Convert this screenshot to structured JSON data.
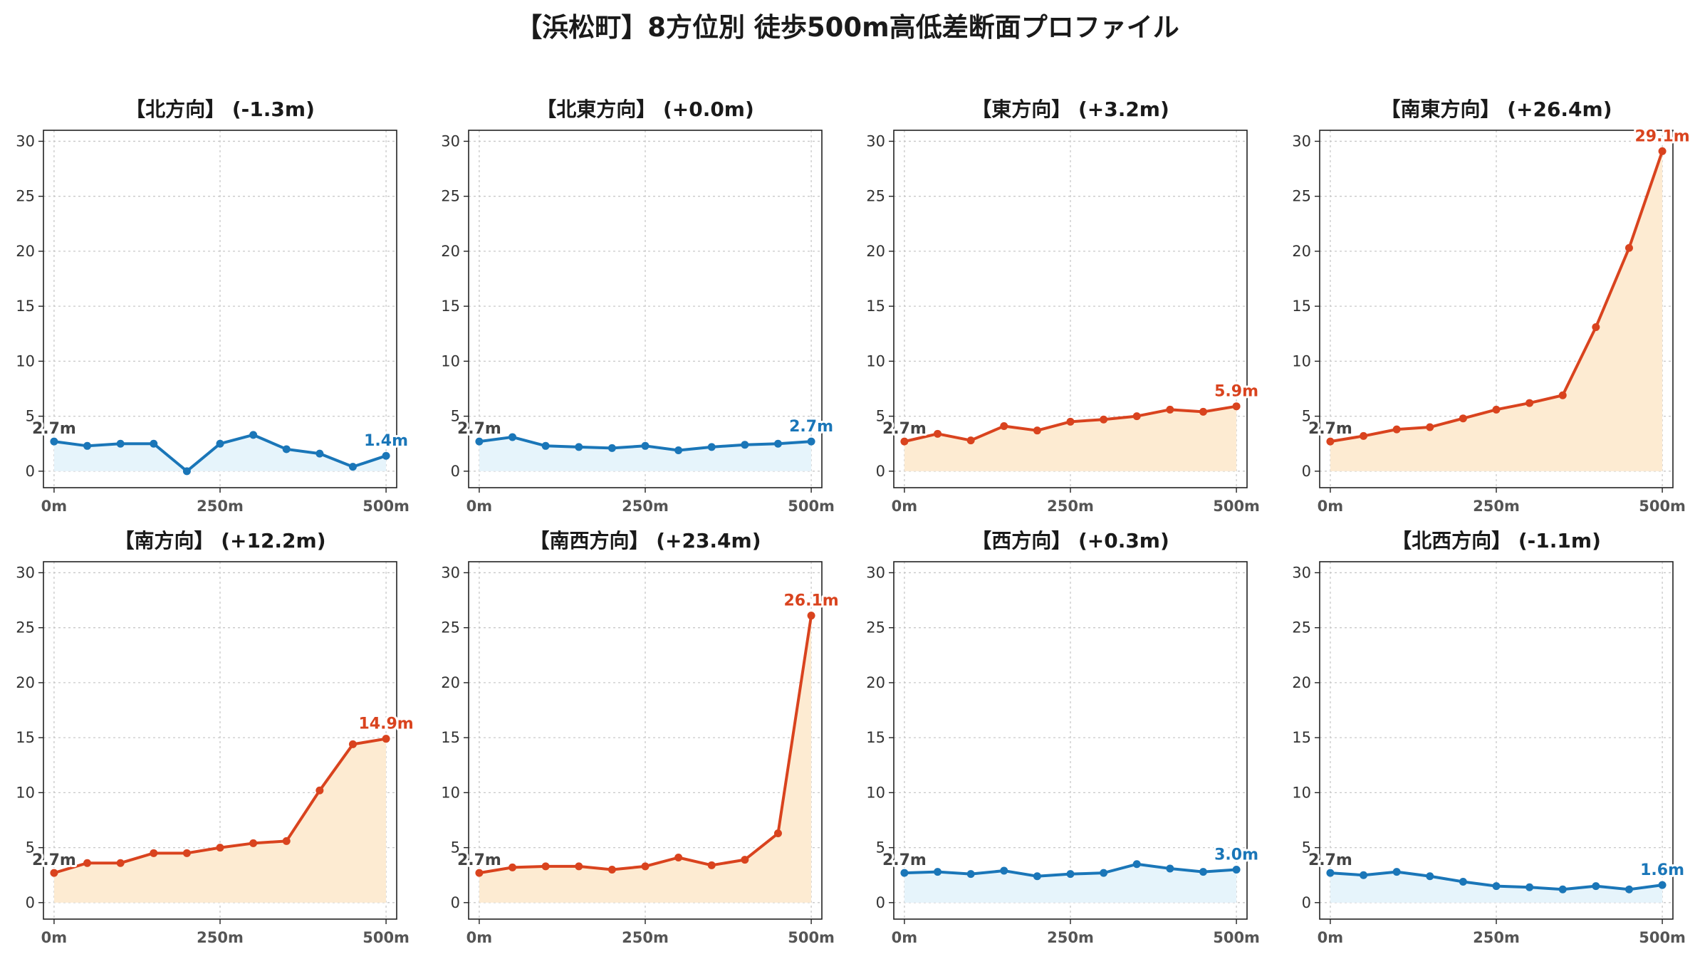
{
  "page_title": "【浜松町】8方位別 徒歩500m高低差断面プロファイル",
  "colors": {
    "uphill": "#d9431e",
    "uphill_fill": "#fdebd2",
    "flat": "#1a76b8",
    "flat_fill": "#e6f4fb"
  },
  "chart_data": [
    {
      "type": "area",
      "title": "【北方向】 (-1.3m)",
      "trend": "flat",
      "x": [
        0,
        50,
        100,
        150,
        200,
        250,
        300,
        350,
        400,
        450,
        500
      ],
      "x_tick_labels": [
        "0m",
        "250m",
        "500m"
      ],
      "x_ticks": [
        0,
        250,
        500
      ],
      "values": [
        2.7,
        2.3,
        2.5,
        2.5,
        0.0,
        2.5,
        3.3,
        2.0,
        1.6,
        0.4,
        1.4
      ],
      "start_label": "2.7m",
      "end_label": "1.4m",
      "ylim": [
        -1.5,
        31
      ],
      "y_ticks": [
        0,
        5,
        10,
        15,
        20,
        25,
        30
      ],
      "grid": true,
      "xlabel": "",
      "ylabel": ""
    },
    {
      "type": "area",
      "title": "【北東方向】 (+0.0m)",
      "trend": "flat",
      "x": [
        0,
        50,
        100,
        150,
        200,
        250,
        300,
        350,
        400,
        450,
        500
      ],
      "x_tick_labels": [
        "0m",
        "250m",
        "500m"
      ],
      "x_ticks": [
        0,
        250,
        500
      ],
      "values": [
        2.7,
        3.1,
        2.3,
        2.2,
        2.1,
        2.3,
        1.9,
        2.2,
        2.4,
        2.5,
        2.7
      ],
      "start_label": "2.7m",
      "end_label": "2.7m",
      "ylim": [
        -1.5,
        31
      ],
      "y_ticks": [
        0,
        5,
        10,
        15,
        20,
        25,
        30
      ],
      "grid": true,
      "xlabel": "",
      "ylabel": ""
    },
    {
      "type": "area",
      "title": "【東方向】 (+3.2m)",
      "trend": "uphill",
      "x": [
        0,
        50,
        100,
        150,
        200,
        250,
        300,
        350,
        400,
        450,
        500
      ],
      "x_tick_labels": [
        "0m",
        "250m",
        "500m"
      ],
      "x_ticks": [
        0,
        250,
        500
      ],
      "values": [
        2.7,
        3.4,
        2.8,
        4.1,
        3.7,
        4.5,
        4.7,
        5.0,
        5.6,
        5.4,
        5.9
      ],
      "start_label": "2.7m",
      "end_label": "5.9m",
      "ylim": [
        -1.5,
        31
      ],
      "y_ticks": [
        0,
        5,
        10,
        15,
        20,
        25,
        30
      ],
      "grid": true,
      "xlabel": "",
      "ylabel": ""
    },
    {
      "type": "area",
      "title": "【南東方向】 (+26.4m)",
      "trend": "uphill",
      "x": [
        0,
        50,
        100,
        150,
        200,
        250,
        300,
        350,
        400,
        450,
        500
      ],
      "x_tick_labels": [
        "0m",
        "250m",
        "500m"
      ],
      "x_ticks": [
        0,
        250,
        500
      ],
      "values": [
        2.7,
        3.2,
        3.8,
        4.0,
        4.8,
        5.6,
        6.2,
        6.9,
        13.1,
        20.3,
        29.1
      ],
      "start_label": "2.7m",
      "end_label": "29.1m",
      "ylim": [
        -1.5,
        31
      ],
      "y_ticks": [
        0,
        5,
        10,
        15,
        20,
        25,
        30
      ],
      "grid": true,
      "xlabel": "",
      "ylabel": ""
    },
    {
      "type": "area",
      "title": "【南方向】 (+12.2m)",
      "trend": "uphill",
      "x": [
        0,
        50,
        100,
        150,
        200,
        250,
        300,
        350,
        400,
        450,
        500
      ],
      "x_tick_labels": [
        "0m",
        "250m",
        "500m"
      ],
      "x_ticks": [
        0,
        250,
        500
      ],
      "values": [
        2.7,
        3.6,
        3.6,
        4.5,
        4.5,
        5.0,
        5.4,
        5.6,
        10.2,
        14.4,
        14.9
      ],
      "start_label": "2.7m",
      "end_label": "14.9m",
      "ylim": [
        -1.5,
        31
      ],
      "y_ticks": [
        0,
        5,
        10,
        15,
        20,
        25,
        30
      ],
      "grid": true,
      "xlabel": "",
      "ylabel": ""
    },
    {
      "type": "area",
      "title": "【南西方向】 (+23.4m)",
      "trend": "uphill",
      "x": [
        0,
        50,
        100,
        150,
        200,
        250,
        300,
        350,
        400,
        450,
        500
      ],
      "x_tick_labels": [
        "0m",
        "250m",
        "500m"
      ],
      "x_ticks": [
        0,
        250,
        500
      ],
      "values": [
        2.7,
        3.2,
        3.3,
        3.3,
        3.0,
        3.3,
        4.1,
        3.4,
        3.9,
        6.3,
        26.1
      ],
      "start_label": "2.7m",
      "end_label": "26.1m",
      "ylim": [
        -1.5,
        31
      ],
      "y_ticks": [
        0,
        5,
        10,
        15,
        20,
        25,
        30
      ],
      "grid": true,
      "xlabel": "",
      "ylabel": ""
    },
    {
      "type": "area",
      "title": "【西方向】 (+0.3m)",
      "trend": "flat",
      "x": [
        0,
        50,
        100,
        150,
        200,
        250,
        300,
        350,
        400,
        450,
        500
      ],
      "x_tick_labels": [
        "0m",
        "250m",
        "500m"
      ],
      "x_ticks": [
        0,
        250,
        500
      ],
      "values": [
        2.7,
        2.8,
        2.6,
        2.9,
        2.4,
        2.6,
        2.7,
        3.5,
        3.1,
        2.8,
        3.0
      ],
      "start_label": "2.7m",
      "end_label": "3.0m",
      "ylim": [
        -1.5,
        31
      ],
      "y_ticks": [
        0,
        5,
        10,
        15,
        20,
        25,
        30
      ],
      "grid": true,
      "xlabel": "",
      "ylabel": ""
    },
    {
      "type": "area",
      "title": "【北西方向】 (-1.1m)",
      "trend": "flat",
      "x": [
        0,
        50,
        100,
        150,
        200,
        250,
        300,
        350,
        400,
        450,
        500
      ],
      "x_tick_labels": [
        "0m",
        "250m",
        "500m"
      ],
      "x_ticks": [
        0,
        250,
        500
      ],
      "values": [
        2.7,
        2.5,
        2.8,
        2.4,
        1.9,
        1.5,
        1.4,
        1.2,
        1.5,
        1.2,
        1.6
      ],
      "start_label": "2.7m",
      "end_label": "1.6m",
      "ylim": [
        -1.5,
        31
      ],
      "y_ticks": [
        0,
        5,
        10,
        15,
        20,
        25,
        30
      ],
      "grid": true,
      "xlabel": "",
      "ylabel": ""
    }
  ]
}
